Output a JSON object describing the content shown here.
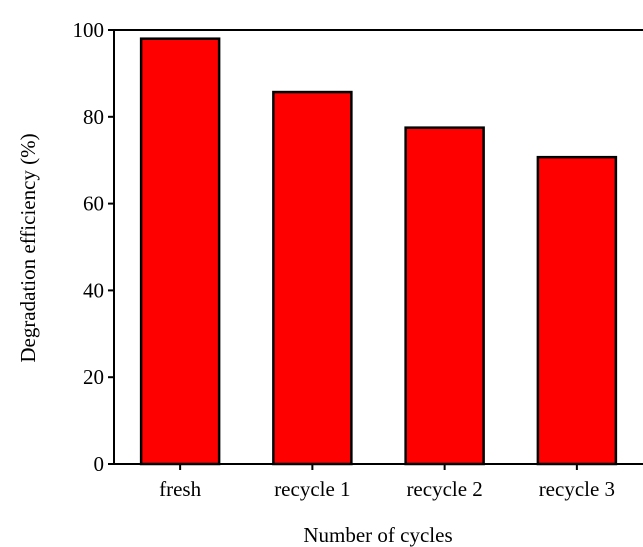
{
  "chart_data": {
    "type": "bar",
    "title": "",
    "xlabel": "Number of cycles",
    "ylabel": "Degradation efficiency (%)",
    "categories": [
      "fresh",
      "recycle 1",
      "recycle 2",
      "recycle 3"
    ],
    "values": [
      98,
      85.7,
      77.5,
      70.7
    ],
    "ylim": [
      0,
      100
    ],
    "yticks": [
      "0",
      "20",
      "40",
      "60",
      "80",
      "100"
    ],
    "bar_color": "#ff0000",
    "bar_edge_color": "#000000",
    "grid": false,
    "legend": "none"
  }
}
